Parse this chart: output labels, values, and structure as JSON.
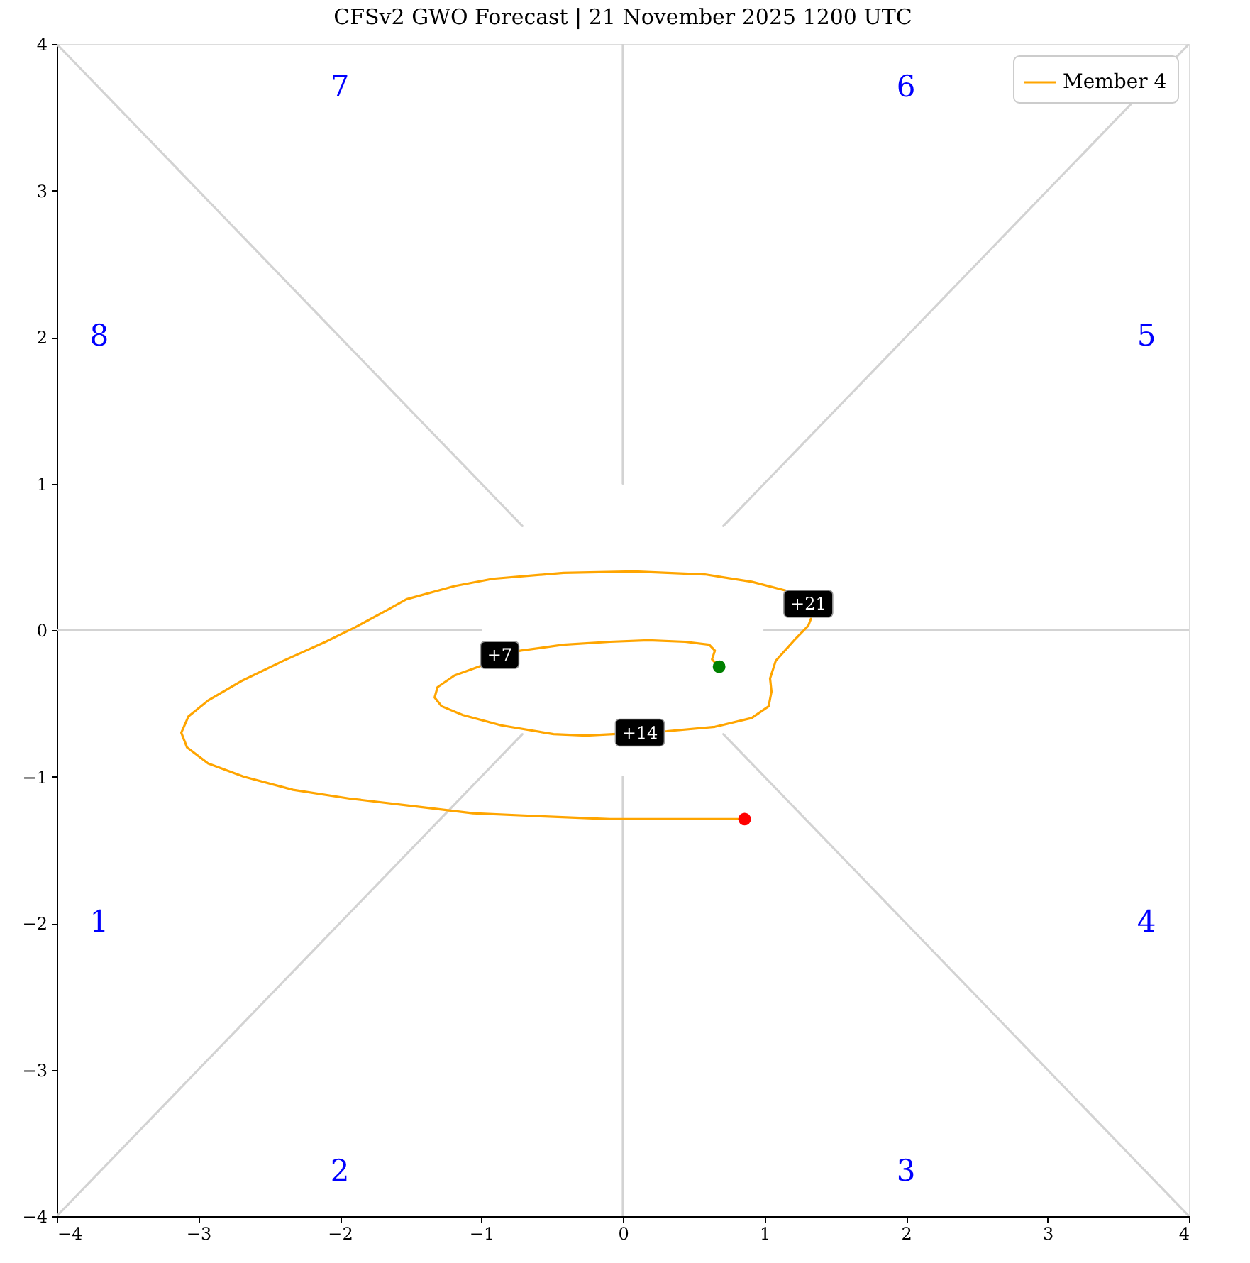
{
  "chart_data": {
    "type": "line",
    "title": "CFSv2 GWO Forecast  |  21 November 2025 1200 UTC",
    "xlim": [
      -4,
      4
    ],
    "ylim": [
      -4,
      4
    ],
    "xticks": [
      -4,
      -3,
      -2,
      -1,
      0,
      1,
      2,
      3,
      4
    ],
    "yticks": [
      -4,
      -3,
      -2,
      -1,
      0,
      1,
      2,
      3,
      4
    ],
    "grid": false,
    "legend": "top right",
    "series": [
      {
        "color": "#d3d3d3",
        "x": [
          -4,
          -1
        ],
        "values": [
          0,
          0
        ]
      },
      {
        "color": "#d3d3d3",
        "x": [
          1,
          4
        ],
        "values": [
          0,
          0
        ]
      },
      {
        "color": "#d3d3d3",
        "x": [
          0,
          0
        ],
        "values": [
          -4,
          -1
        ]
      },
      {
        "color": "#d3d3d3",
        "x": [
          0,
          0
        ],
        "values": [
          1,
          4
        ]
      },
      {
        "color": "#d3d3d3",
        "x": [
          -4,
          -0.71
        ],
        "values": [
          4,
          0.71
        ]
      },
      {
        "color": "#d3d3d3",
        "x": [
          0.71,
          4
        ],
        "values": [
          -0.71,
          -4
        ]
      },
      {
        "color": "#d3d3d3",
        "x": [
          -4,
          -0.71
        ],
        "values": [
          -4,
          -0.71
        ]
      },
      {
        "color": "#d3d3d3",
        "x": [
          0.71,
          4
        ],
        "values": [
          0.71,
          4
        ]
      },
      {
        "name": "Member 4",
        "color": "#ffa500",
        "x": [
          0.68,
          0.63,
          0.65,
          0.61,
          0.44,
          0.18,
          -0.09,
          -0.42,
          -0.72,
          -0.87,
          -0.99,
          -1.19,
          -1.31,
          -1.33,
          -1.28,
          -1.13,
          -0.86,
          -0.49,
          -0.26,
          0.12,
          0.31,
          0.65,
          0.91,
          1.03,
          1.05,
          1.04,
          1.08,
          1.21,
          1.31,
          1.33,
          1.31,
          1.15,
          0.91,
          0.58,
          0.08,
          -0.42,
          -0.92,
          -1.19,
          -1.53,
          -1.66,
          -1.89,
          -2.1,
          -2.4,
          -2.7,
          -2.93,
          -3.07,
          -3.12,
          -3.08,
          -2.93,
          -2.68,
          -2.33,
          -1.93,
          -1.49,
          -1.06,
          -0.59,
          -0.09,
          0.41,
          0.86
        ],
        "values": [
          -0.25,
          -0.2,
          -0.14,
          -0.1,
          -0.08,
          -0.07,
          -0.08,
          -0.1,
          -0.14,
          -0.17,
          -0.24,
          -0.31,
          -0.39,
          -0.46,
          -0.52,
          -0.58,
          -0.65,
          -0.71,
          -0.72,
          -0.7,
          -0.69,
          -0.66,
          -0.6,
          -0.52,
          -0.42,
          -0.33,
          -0.21,
          -0.07,
          0.03,
          0.08,
          null,
          0.27,
          0.33,
          0.38,
          0.4,
          0.39,
          0.35,
          0.3,
          0.21,
          0.14,
          0.02,
          -0.08,
          -0.21,
          -0.35,
          -0.48,
          -0.59,
          -0.7,
          -0.8,
          -0.91,
          -1.0,
          -1.09,
          -1.15,
          -1.2,
          -1.25,
          -1.27,
          -1.29,
          -1.29,
          -1.29
        ]
      },
      {
        "type": "scatter",
        "color": "#008000",
        "marker": "circle",
        "x": [
          0.68
        ],
        "values": [
          -0.25
        ]
      },
      {
        "type": "scatter",
        "color": "#ff0000",
        "marker": "circle",
        "x": [
          0.86
        ],
        "values": [
          -1.29
        ]
      }
    ],
    "annotations": [
      {
        "text": "+7",
        "x": -0.87,
        "y": -0.17
      },
      {
        "text": "+14",
        "x": 0.12,
        "y": -0.7
      },
      {
        "text": "+21",
        "x": 1.31,
        "y": 0.18
      },
      "1",
      "2",
      "3",
      "4",
      "5",
      "6",
      "7",
      "8"
    ]
  }
}
